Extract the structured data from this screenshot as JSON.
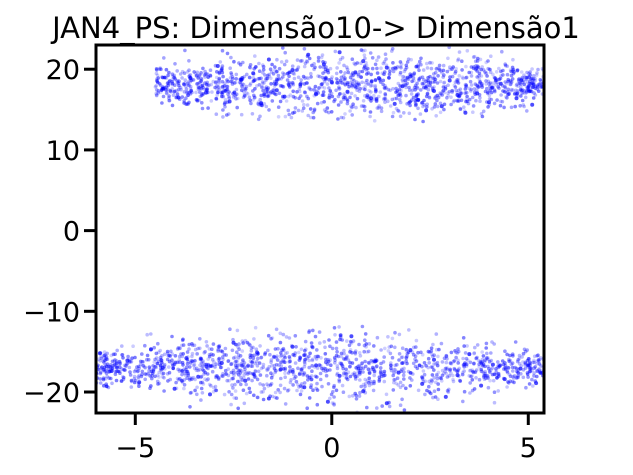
{
  "chart_data": {
    "type": "scatter",
    "title": "JAN4_PS: Dimensão10-> Dimensão1",
    "xlabel": "",
    "ylabel": "",
    "xlim": [
      -6,
      5.4
    ],
    "ylim": [
      -22.6,
      23
    ],
    "xticks": [
      -5,
      0,
      5
    ],
    "xtick_labels": [
      "−5",
      "0",
      "5"
    ],
    "yticks": [
      -20,
      -10,
      0,
      10,
      20
    ],
    "ytick_labels": [
      "−20",
      "−10",
      "0",
      "10",
      "20"
    ],
    "grid": false,
    "legend": "none",
    "marker_color": "#0000ff",
    "clusters": [
      {
        "label": "upper",
        "x_range": [
          -4.5,
          5.4
        ],
        "y_range": [
          13.5,
          23
        ],
        "y_center": 18
      },
      {
        "label": "lower",
        "x_range": [
          -6,
          5.4
        ],
        "y_range": [
          -22.6,
          -11.5
        ],
        "y_center": -17
      }
    ],
    "points": [
      [
        -4.3,
        17.6
      ],
      [
        -3.9,
        16.5
      ],
      [
        -3.6,
        18.9
      ],
      [
        -3.2,
        17.1
      ],
      [
        -2.9,
        20.4
      ],
      [
        -2.6,
        16.0
      ],
      [
        -2.3,
        18.7
      ],
      [
        -2.0,
        19.5
      ],
      [
        -1.8,
        15.8
      ],
      [
        -1.6,
        21.2
      ],
      [
        -1.4,
        17.4
      ],
      [
        -1.2,
        16.6
      ],
      [
        -1.0,
        19.9
      ],
      [
        -0.8,
        18.1
      ],
      [
        -0.6,
        21.8
      ],
      [
        -0.4,
        16.9
      ],
      [
        -0.2,
        20.6
      ],
      [
        0.0,
        18.4
      ],
      [
        0.2,
        22.1
      ],
      [
        0.4,
        17.2
      ],
      [
        0.6,
        19.6
      ],
      [
        0.8,
        21.0
      ],
      [
        1.0,
        16.4
      ],
      [
        1.2,
        18.9
      ],
      [
        1.4,
        20.2
      ],
      [
        1.6,
        15.7
      ],
      [
        1.8,
        17.9
      ],
      [
        2.0,
        19.1
      ],
      [
        2.2,
        16.2
      ],
      [
        2.4,
        14.9
      ],
      [
        2.6,
        17.3
      ],
      [
        2.8,
        15.4
      ],
      [
        3.0,
        18.6
      ],
      [
        3.2,
        16.8
      ],
      [
        3.4,
        14.6
      ],
      [
        3.7,
        17.0
      ],
      [
        4.0,
        15.9
      ],
      [
        4.3,
        18.2
      ],
      [
        4.7,
        16.4
      ],
      [
        5.1,
        15.6
      ],
      [
        -5.9,
        -15.2
      ],
      [
        -5.6,
        -17.4
      ],
      [
        -5.2,
        -16.1
      ],
      [
        -4.9,
        -18.8
      ],
      [
        -4.6,
        -14.7
      ],
      [
        -4.3,
        -17.0
      ],
      [
        -4.0,
        -19.6
      ],
      [
        -3.7,
        -15.8
      ],
      [
        -3.4,
        -18.1
      ],
      [
        -3.1,
        -20.3
      ],
      [
        -2.8,
        -16.4
      ],
      [
        -2.5,
        -13.9
      ],
      [
        -2.2,
        -18.6
      ],
      [
        -1.9,
        -15.1
      ],
      [
        -1.6,
        -20.8
      ],
      [
        -1.3,
        -17.2
      ],
      [
        -1.0,
        -14.4
      ],
      [
        -0.7,
        -19.4
      ],
      [
        -0.4,
        -16.7
      ],
      [
        -0.1,
        -21.2
      ],
      [
        0.2,
        -18.0
      ],
      [
        0.5,
        -13.1
      ],
      [
        0.8,
        -19.9
      ],
      [
        1.1,
        -16.2
      ],
      [
        1.4,
        -21.4
      ],
      [
        1.7,
        -17.6
      ],
      [
        2.0,
        -14.8
      ],
      [
        2.3,
        -19.0
      ],
      [
        2.6,
        -16.0
      ],
      [
        2.9,
        -20.6
      ],
      [
        3.2,
        -17.9
      ],
      [
        3.5,
        -15.3
      ],
      [
        3.8,
        -19.2
      ],
      [
        4.1,
        -16.6
      ],
      [
        4.4,
        -18.4
      ],
      [
        4.8,
        -17.1
      ],
      [
        5.2,
        -18.9
      ]
    ]
  }
}
